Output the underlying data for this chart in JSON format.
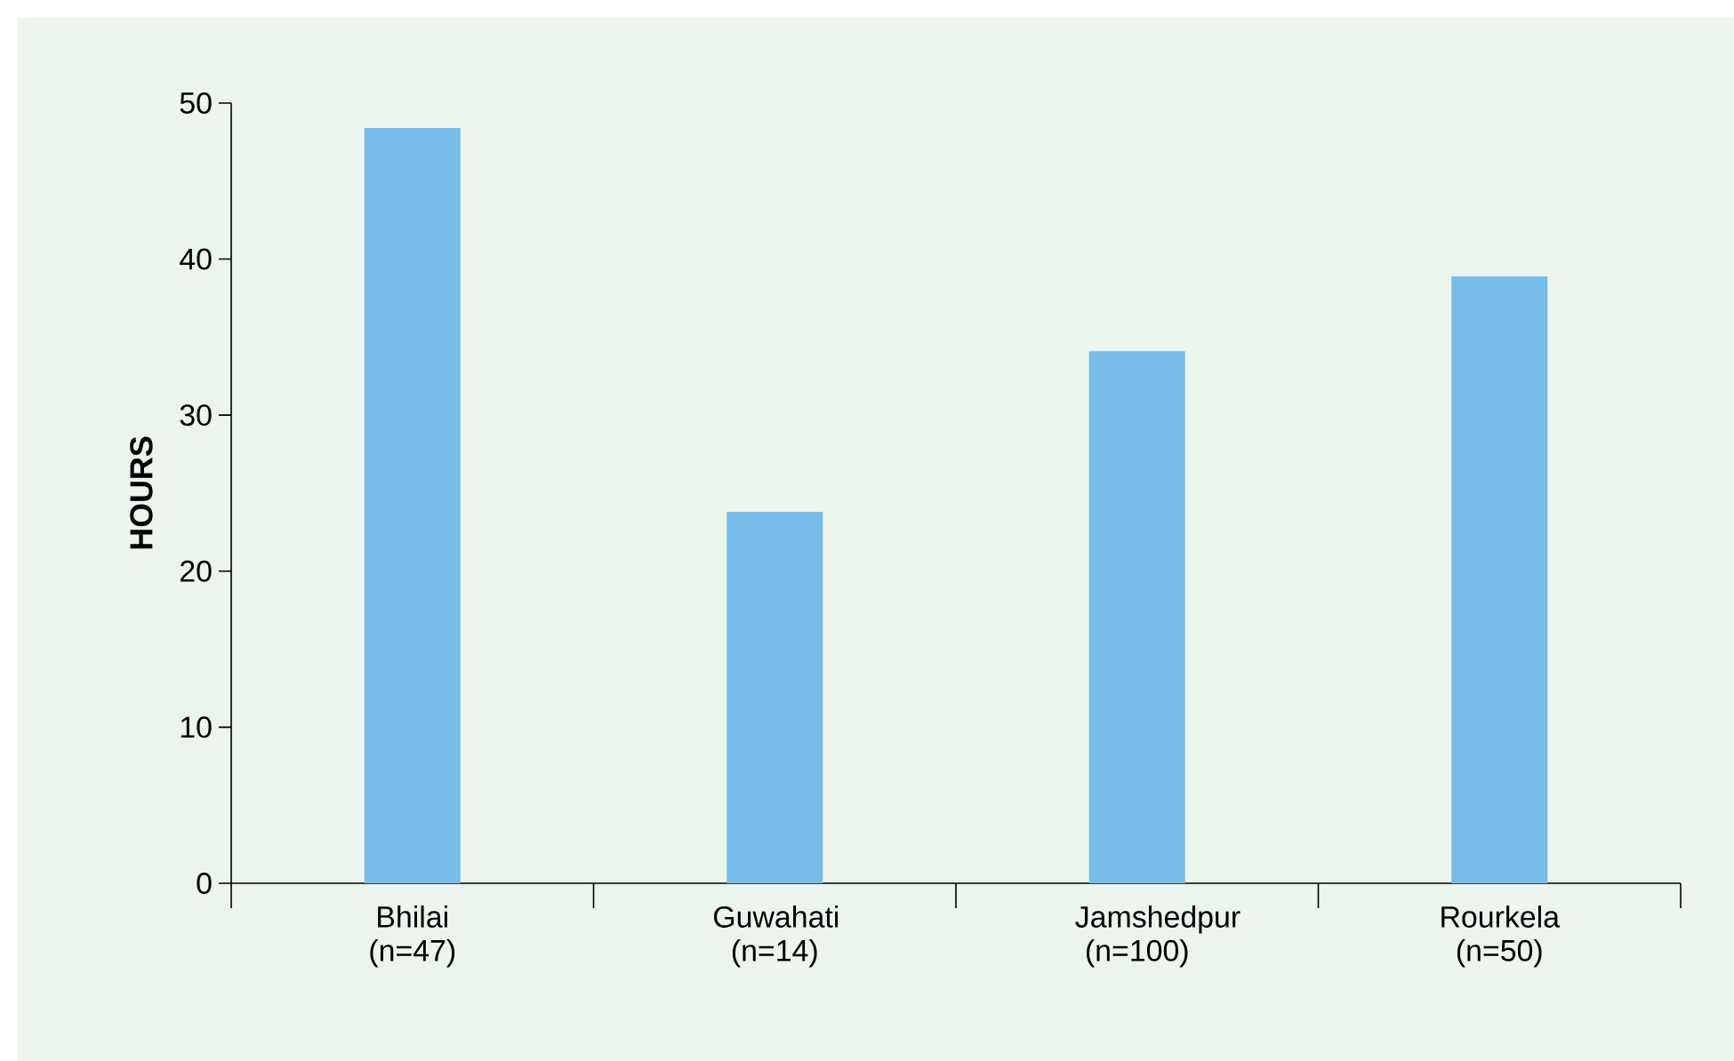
{
  "chart_data": {
    "type": "bar",
    "ylabel": "HOURS",
    "categories": [
      "Bhilai (n=47)",
      "Guwahati (n=14)",
      "Jamshedpur (n=100)",
      "Rourkela (n=50)"
    ],
    "values": [
      48.4,
      23.8,
      34.1,
      38.9
    ],
    "color": "#77bde9",
    "ylim": [
      0,
      50
    ],
    "yticks": [
      0,
      10,
      20,
      30,
      40,
      50
    ],
    "grid": false
  }
}
